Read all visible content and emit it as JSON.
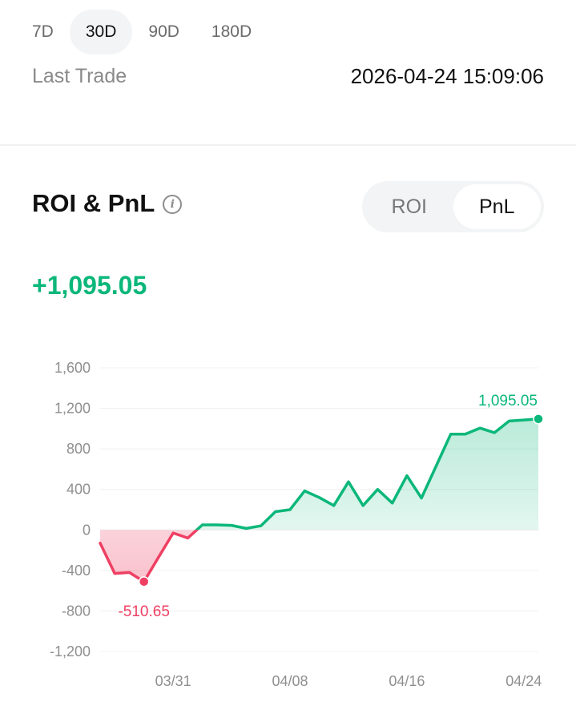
{
  "period_tabs": [
    {
      "label": "7D",
      "active": false
    },
    {
      "label": "30D",
      "active": true
    },
    {
      "label": "90D",
      "active": false
    },
    {
      "label": "180D",
      "active": false
    }
  ],
  "last_trade": {
    "label": "Last Trade",
    "value": "2026-04-24 15:09:06"
  },
  "section": {
    "title": "ROI & PnL",
    "info_icon": "info-icon"
  },
  "toggle": [
    {
      "label": "ROI",
      "active": false
    },
    {
      "label": "PnL",
      "active": true
    }
  ],
  "headline_value": "+1,095.05",
  "colors": {
    "positive": "#0bb77a",
    "negative": "#ef3f63",
    "grid": "#f0f0f0",
    "tick": "#8f8f8f"
  },
  "chart_data": {
    "type": "area",
    "title": "",
    "xlabel": "",
    "ylabel": "",
    "ylim": [
      -1200,
      1600
    ],
    "y_ticks": [
      1600,
      1200,
      800,
      400,
      0,
      -400,
      -800,
      -1200
    ],
    "y_tick_labels": [
      "1,600",
      "1,200",
      "800",
      "400",
      "0",
      "-400",
      "-800",
      "-1,200"
    ],
    "x_tick_labels": [
      "03/31",
      "04/08",
      "04/16",
      "04/24"
    ],
    "x_tick_values": [
      "2026-03-31",
      "2026-04-08",
      "2026-04-16",
      "2026-04-24"
    ],
    "grid": true,
    "series": [
      {
        "x": [
          "2026-03-26",
          "2026-03-27",
          "2026-03-28",
          "2026-03-29",
          "2026-03-30",
          "2026-03-31",
          "2026-04-01",
          "2026-04-02",
          "2026-04-03",
          "2026-04-04",
          "2026-04-05",
          "2026-04-06",
          "2026-04-07",
          "2026-04-08",
          "2026-04-09",
          "2026-04-10",
          "2026-04-11",
          "2026-04-12",
          "2026-04-13",
          "2026-04-14",
          "2026-04-15",
          "2026-04-16",
          "2026-04-17",
          "2026-04-18",
          "2026-04-19",
          "2026-04-20",
          "2026-04-21",
          "2026-04-22",
          "2026-04-23",
          "2026-04-24",
          "2026-04-25"
        ],
        "values": [
          -130,
          -430,
          -420,
          -510.65,
          -270,
          -30,
          -80,
          50,
          50,
          45,
          15,
          40,
          180,
          200,
          385,
          320,
          240,
          475,
          240,
          400,
          265,
          535,
          315,
          630,
          945,
          945,
          1005,
          960,
          1075,
          1085,
          1095.05
        ]
      }
    ],
    "annotations": [
      {
        "label": "1,095.05",
        "x": "2026-04-25",
        "y": 1095.05,
        "kind": "max"
      },
      {
        "label": "-510.65",
        "x": "2026-03-29",
        "y": -510.65,
        "kind": "min"
      }
    ]
  }
}
